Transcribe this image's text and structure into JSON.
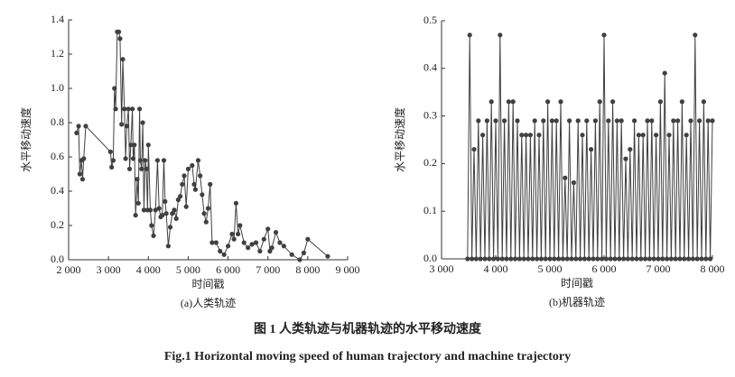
{
  "chart_data": [
    {
      "type": "line",
      "subtitle": "(a)人类轨迹",
      "xlabel": "时间戳",
      "ylabel": "水平移动速度",
      "color": "#404040",
      "x": [
        2200,
        2250,
        2280,
        2320,
        2350,
        2380,
        2430,
        3050,
        3080,
        3120,
        3150,
        3180,
        3220,
        3260,
        3290,
        3330,
        3360,
        3400,
        3430,
        3460,
        3500,
        3530,
        3560,
        3600,
        3620,
        3650,
        3680,
        3720,
        3750,
        3780,
        3800,
        3830,
        3860,
        3890,
        3920,
        3950,
        3980,
        4000,
        4050,
        4080,
        4130,
        4180,
        4230,
        4270,
        4310,
        4350,
        4390,
        4420,
        4450,
        4500,
        4550,
        4600,
        4650,
        4700,
        4750,
        4800,
        4850,
        4900,
        4950,
        5000,
        5100,
        5150,
        5180,
        5250,
        5300,
        5350,
        5400,
        5450,
        5500,
        5550,
        5600,
        5700,
        5800,
        5900,
        6000,
        6100,
        6150,
        6200,
        6250,
        6300,
        6400,
        6500,
        6600,
        6700,
        6800,
        6900,
        7000,
        7050,
        7100,
        7200,
        7300,
        7400,
        7600,
        7800,
        7900,
        8000,
        8500
      ],
      "values": [
        0.74,
        0.78,
        0.5,
        0.58,
        0.47,
        0.59,
        0.78,
        0.63,
        0.54,
        0.58,
        1.0,
        0.88,
        1.33,
        1.33,
        1.29,
        0.79,
        1.17,
        0.88,
        0.59,
        0.78,
        0.88,
        0.53,
        0.67,
        0.88,
        0.59,
        0.67,
        0.26,
        0.47,
        0.33,
        0.88,
        0.58,
        0.53,
        0.8,
        0.29,
        0.58,
        0.53,
        0.29,
        0.67,
        0.29,
        0.2,
        0.14,
        0.29,
        0.58,
        0.3,
        0.25,
        0.26,
        0.58,
        0.34,
        0.27,
        0.08,
        0.19,
        0.27,
        0.29,
        0.24,
        0.35,
        0.37,
        0.44,
        0.49,
        0.31,
        0.53,
        0.55,
        0.44,
        0.41,
        0.58,
        0.49,
        0.38,
        0.27,
        0.22,
        0.3,
        0.44,
        0.1,
        0.1,
        0.05,
        0.03,
        0.08,
        0.15,
        0.12,
        0.33,
        0.15,
        0.2,
        0.1,
        0.07,
        0.09,
        0.1,
        0.05,
        0.12,
        0.18,
        0.05,
        0.07,
        0.16,
        0.1,
        0.08,
        0.03,
        0,
        0.04,
        0.12,
        0.02
      ],
      "xlim": [
        2000,
        9000
      ],
      "xticks": [
        {
          "value": 2000,
          "label": "2 000"
        },
        {
          "value": 3000,
          "label": "3 000"
        },
        {
          "value": 4000,
          "label": "4 000"
        },
        {
          "value": 5000,
          "label": "5 000"
        },
        {
          "value": 6000,
          "label": "6 000"
        },
        {
          "value": 7000,
          "label": "7 000"
        },
        {
          "value": 8000,
          "label": "8 000"
        },
        {
          "value": 9000,
          "label": "9 000"
        }
      ],
      "ylim": [
        0,
        1.4
      ],
      "yticks": [
        {
          "value": 0,
          "label": "0.0"
        },
        0.2,
        0.4,
        0.6,
        0.8,
        {
          "value": 1,
          "label": "1.0"
        },
        1.2,
        1.4
      ]
    },
    {
      "type": "line",
      "subtitle": "(b)机器轨迹",
      "xlabel": "时间戳",
      "ylabel": "水平移动速度",
      "color": "#404040",
      "x": [
        3480,
        3520,
        3560,
        3600,
        3640,
        3680,
        3720,
        3760,
        3800,
        3840,
        3880,
        3920,
        3960,
        4000,
        4040,
        4080,
        4120,
        4160,
        4200,
        4240,
        4280,
        4320,
        4360,
        4400,
        4440,
        4480,
        4520,
        4560,
        4600,
        4640,
        4680,
        4720,
        4760,
        4800,
        4840,
        4880,
        4920,
        4960,
        5000,
        5040,
        5080,
        5120,
        5160,
        5200,
        5240,
        5280,
        5320,
        5360,
        5400,
        5440,
        5480,
        5520,
        5560,
        5600,
        5640,
        5680,
        5720,
        5760,
        5800,
        5840,
        5880,
        5920,
        5960,
        6000,
        6040,
        6080,
        6120,
        6160,
        6200,
        6240,
        6280,
        6320,
        6360,
        6400,
        6440,
        6480,
        6520,
        6560,
        6600,
        6640,
        6680,
        6720,
        6760,
        6800,
        6840,
        6880,
        6920,
        6960,
        7000,
        7040,
        7080,
        7120,
        7160,
        7200,
        7240,
        7280,
        7320,
        7360,
        7400,
        7440,
        7480,
        7520,
        7560,
        7600,
        7640,
        7680,
        7720,
        7760,
        7800,
        7840,
        7880,
        7920,
        7960,
        8000
      ],
      "values": [
        0,
        0.47,
        0,
        0.23,
        0,
        0.29,
        0,
        0.26,
        0,
        0.29,
        0,
        0.33,
        0,
        0.29,
        0,
        0.47,
        0,
        0.29,
        0,
        0.33,
        0,
        0.33,
        0,
        0.29,
        0,
        0.26,
        0,
        0.26,
        0,
        0.26,
        0,
        0.29,
        0,
        0.26,
        0,
        0.29,
        0,
        0.33,
        0,
        0.29,
        0,
        0.29,
        0,
        0.33,
        0,
        0.17,
        0,
        0.29,
        0,
        0.16,
        0,
        0.29,
        0,
        0.26,
        0,
        0.29,
        0,
        0.23,
        0,
        0.29,
        0,
        0.33,
        0,
        0.47,
        0,
        0.29,
        0,
        0.33,
        0,
        0.29,
        0,
        0.29,
        0,
        0.21,
        0,
        0.23,
        0,
        0.29,
        0,
        0.26,
        0,
        0.26,
        0,
        0.29,
        0,
        0.29,
        0,
        0.26,
        0,
        0.33,
        0,
        0.39,
        0,
        0.26,
        0,
        0.29,
        0,
        0.29,
        0,
        0.33,
        0,
        0.26,
        0,
        0.29,
        0,
        0.47,
        0,
        0.29,
        0,
        0.33,
        0,
        0.29,
        0,
        0.29
      ],
      "xlim": [
        3000,
        8000
      ],
      "xticks": [
        {
          "value": 3000,
          "label": "3 000"
        },
        {
          "value": 4000,
          "label": "4 000"
        },
        {
          "value": 5000,
          "label": "5 000"
        },
        {
          "value": 6000,
          "label": "6 000"
        },
        {
          "value": 7000,
          "label": "7 000"
        },
        {
          "value": 8000,
          "label": "8 000"
        }
      ],
      "ylim": [
        0,
        0.5
      ],
      "yticks": [
        {
          "value": 0,
          "label": "0.0"
        },
        0.1,
        0.2,
        0.3,
        0.4,
        0.5
      ]
    }
  ],
  "caption": {
    "cn": "图 1   人类轨迹与机器轨迹的水平移动速度",
    "en": "Fig.1   Horizontal moving speed of human trajectory and machine trajectory"
  }
}
